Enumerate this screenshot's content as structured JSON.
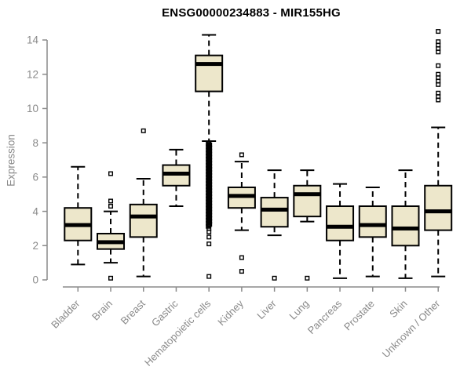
{
  "colors": {
    "background": "#ffffff",
    "box_fill": "#ede7cb",
    "box_stroke": "#000000",
    "median": "#000000",
    "whisker": "#000000",
    "axis": "#8a8a8a",
    "tick_label": "#8a8a8a",
    "title": "#000000"
  },
  "chart_data": {
    "type": "boxplot",
    "title": "ENSG00000234883 - MIR155HG",
    "xlabel": "",
    "ylabel": "Expression",
    "ylim": [
      0,
      14
    ],
    "yticks": [
      0,
      2,
      4,
      6,
      8,
      10,
      12,
      14
    ],
    "grid": false,
    "categories": [
      "Bladder",
      "Brain",
      "Breast",
      "Gastric",
      "Hematopoietic cells",
      "Kidney",
      "Liver",
      "Lung",
      "Pancreas",
      "Prostate",
      "Skin",
      "Unknown / Other"
    ],
    "series": [
      {
        "category": "Bladder",
        "whisker_low": 0.9,
        "q1": 2.3,
        "median": 3.2,
        "q3": 4.2,
        "whisker_high": 6.6,
        "outliers": []
      },
      {
        "category": "Brain",
        "whisker_low": 1.0,
        "q1": 1.8,
        "median": 2.2,
        "q3": 2.7,
        "whisker_high": 4.0,
        "outliers": [
          6.2,
          4.6,
          4.3,
          0.1
        ]
      },
      {
        "category": "Breast",
        "whisker_low": 0.2,
        "q1": 2.5,
        "median": 3.7,
        "q3": 4.4,
        "whisker_high": 5.9,
        "outliers": [
          8.7
        ]
      },
      {
        "category": "Gastric",
        "whisker_low": 4.3,
        "q1": 5.5,
        "median": 6.2,
        "q3": 6.7,
        "whisker_high": 7.6,
        "outliers": []
      },
      {
        "category": "Hematopoietic cells",
        "whisker_low": 8.1,
        "q1": 11.0,
        "median": 12.6,
        "q3": 13.1,
        "whisker_high": 14.3,
        "outliers": [
          3.0,
          2.8,
          2.5,
          2.1,
          0.2
        ],
        "outlier_dense_range": [
          3.1,
          8.0
        ]
      },
      {
        "category": "Kidney",
        "whisker_low": 2.9,
        "q1": 4.2,
        "median": 4.9,
        "q3": 5.4,
        "whisker_high": 6.9,
        "outliers": [
          7.3,
          1.3,
          0.5
        ]
      },
      {
        "category": "Liver",
        "whisker_low": 2.6,
        "q1": 3.1,
        "median": 4.1,
        "q3": 4.8,
        "whisker_high": 6.4,
        "outliers": [
          0.1
        ]
      },
      {
        "category": "Lung",
        "whisker_low": 3.4,
        "q1": 3.7,
        "median": 5.0,
        "q3": 5.5,
        "whisker_high": 6.4,
        "outliers": [
          0.1
        ]
      },
      {
        "category": "Pancreas",
        "whisker_low": 0.1,
        "q1": 2.3,
        "median": 3.1,
        "q3": 4.3,
        "whisker_high": 5.6,
        "outliers": []
      },
      {
        "category": "Prostate",
        "whisker_low": 0.2,
        "q1": 2.5,
        "median": 3.2,
        "q3": 4.3,
        "whisker_high": 5.4,
        "outliers": []
      },
      {
        "category": "Skin",
        "whisker_low": 0.1,
        "q1": 2.0,
        "median": 3.0,
        "q3": 4.3,
        "whisker_high": 6.4,
        "outliers": []
      },
      {
        "category": "Unknown / Other",
        "whisker_low": 0.2,
        "q1": 2.9,
        "median": 4.0,
        "q3": 5.5,
        "whisker_high": 8.9,
        "outliers": [
          14.5,
          13.9,
          13.7,
          13.5,
          13.3,
          12.5,
          12.0,
          11.8,
          11.6,
          11.4,
          10.9,
          10.7,
          10.5
        ]
      }
    ]
  }
}
